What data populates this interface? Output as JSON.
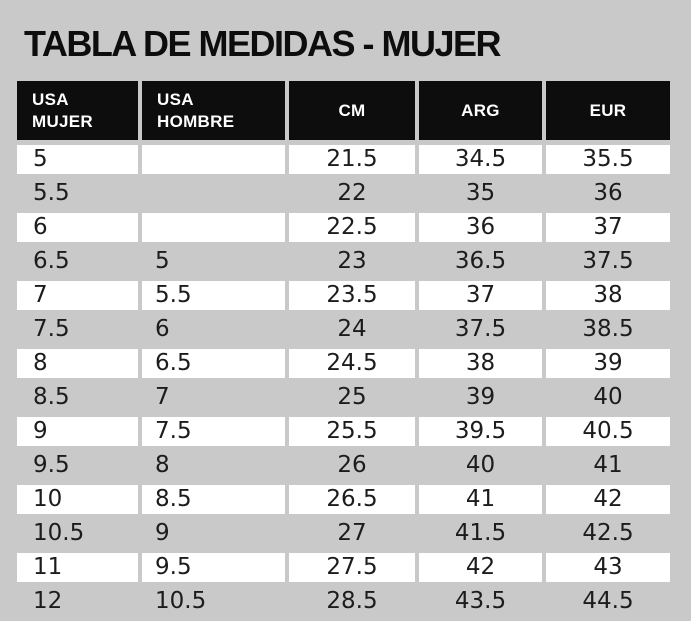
{
  "title": "TABLA DE MEDIDAS - MUJER",
  "colors": {
    "page_background": "#c9c9c9",
    "header_background": "#0d0d0d",
    "header_text": "#ffffff",
    "first_column_background": "#8b8b8b",
    "row_white": "#ffffff",
    "row_gray": "#c9c9c9",
    "body_text": "#1c1c1c"
  },
  "chart_data": {
    "type": "table",
    "title": "TABLA DE MEDIDAS - MUJER",
    "columns": [
      {
        "key": "usa-mujer",
        "label": "USA MUJER",
        "align": "left"
      },
      {
        "key": "usa-hombre",
        "label": "USA HOMBRE",
        "align": "left"
      },
      {
        "key": "cm",
        "label": "CM",
        "align": "center"
      },
      {
        "key": "arg",
        "label": "ARG",
        "align": "center"
      },
      {
        "key": "eur",
        "label": "EUR",
        "align": "center"
      }
    ],
    "rows": [
      [
        "5",
        "",
        "21.5",
        "34.5",
        "35.5"
      ],
      [
        "5.5",
        "",
        "22",
        "35",
        "36"
      ],
      [
        "6",
        "",
        "22.5",
        "36",
        "37"
      ],
      [
        "6.5",
        "5",
        "23",
        "36.5",
        "37.5"
      ],
      [
        "7",
        "5.5",
        "23.5",
        "37",
        "38"
      ],
      [
        "7.5",
        "6",
        "24",
        "37.5",
        "38.5"
      ],
      [
        "8",
        "6.5",
        "24.5",
        "38",
        "39"
      ],
      [
        "8.5",
        "7",
        "25",
        "39",
        "40"
      ],
      [
        "9",
        "7.5",
        "25.5",
        "39.5",
        "40.5"
      ],
      [
        "9.5",
        "8",
        "26",
        "40",
        "41"
      ],
      [
        "10",
        "8.5",
        "26.5",
        "41",
        "42"
      ],
      [
        "10.5",
        "9",
        "27",
        "41.5",
        "42.5"
      ],
      [
        "11",
        "9.5",
        "27.5",
        "42",
        "43"
      ],
      [
        "12",
        "10.5",
        "28.5",
        "43.5",
        "44.5"
      ]
    ]
  }
}
